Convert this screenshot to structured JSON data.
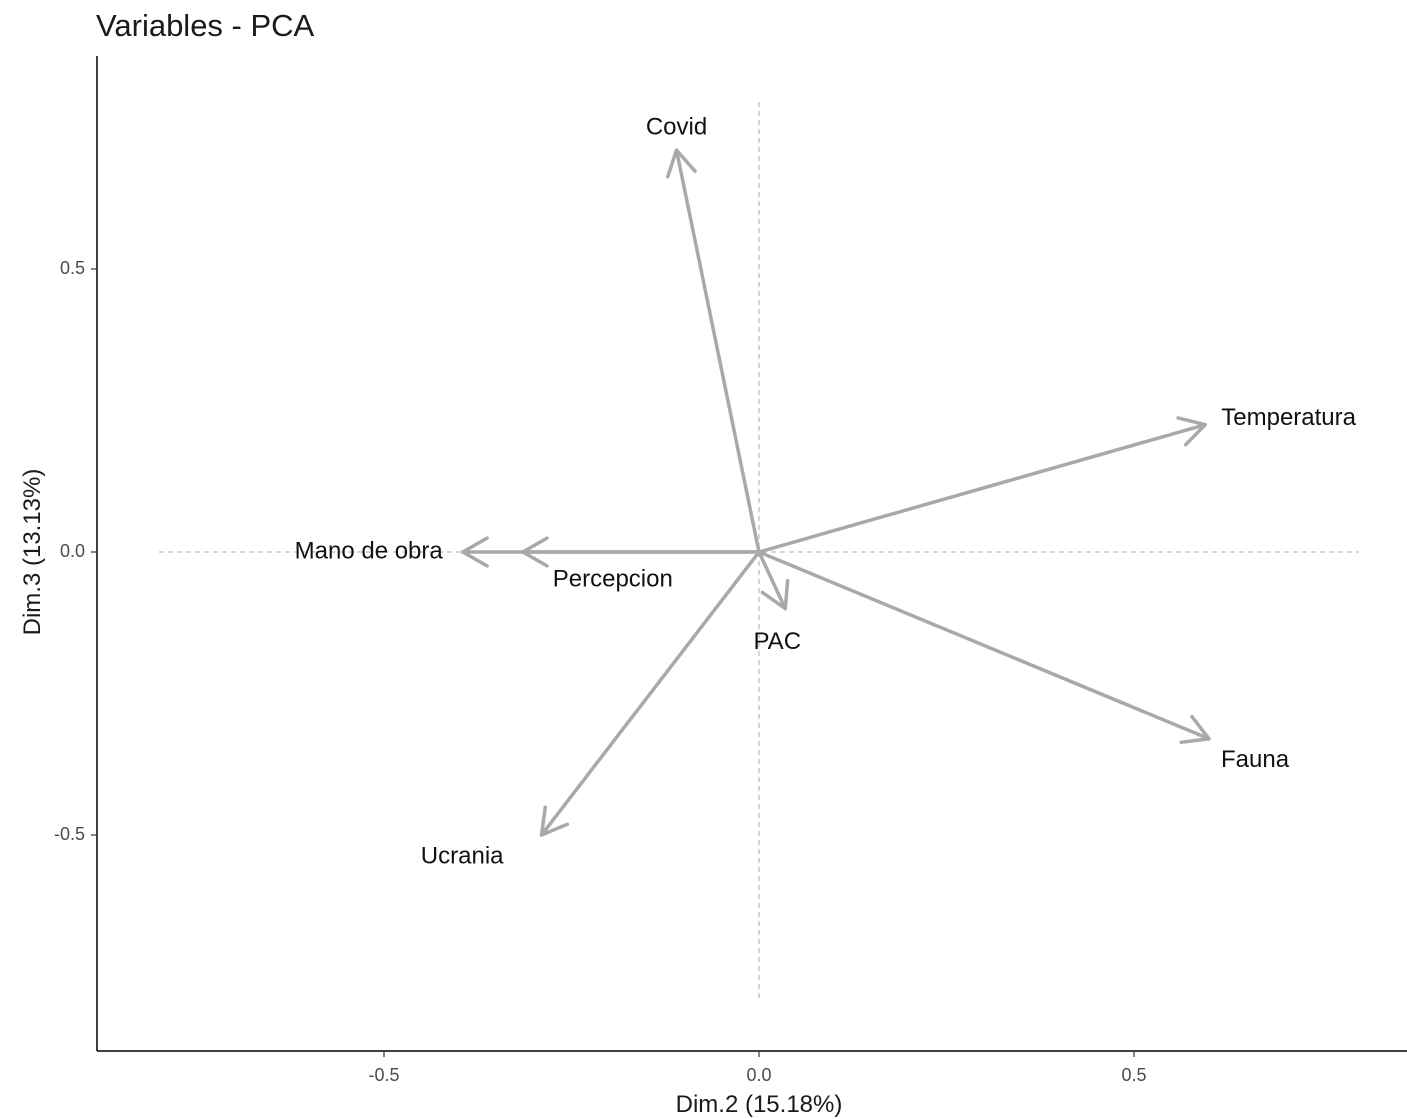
{
  "chart_data": {
    "type": "scatter",
    "title": "Variables - PCA",
    "xlabel": "Dim.2 (15.18%)",
    "ylabel": "Dim.3 (13.13%)",
    "xlim": [
      -0.88,
      0.86
    ],
    "ylim": [
      -0.88,
      0.88
    ],
    "xticks": [
      -0.5,
      0.0,
      0.5
    ],
    "xtick_labels": [
      "-0.5",
      "0.0",
      "0.5"
    ],
    "yticks": [
      0.5,
      0.0,
      -0.5
    ],
    "ytick_labels": [
      "0.5",
      "0.0",
      "-0.5"
    ],
    "grid": false,
    "arrow_color": "#a9a9a9",
    "variables": [
      {
        "name": "Covid",
        "x": -0.11,
        "y": 0.71
      },
      {
        "name": "Temperatura",
        "x": 0.595,
        "y": 0.225
      },
      {
        "name": "Mano de obra",
        "x": -0.395,
        "y": 0.0
      },
      {
        "name": "Percepcion",
        "x": -0.315,
        "y": 0.0
      },
      {
        "name": "PAC",
        "x": 0.035,
        "y": -0.1
      },
      {
        "name": "Fauna",
        "x": 0.6,
        "y": -0.33
      },
      {
        "name": "Ucrania",
        "x": -0.29,
        "y": -0.5
      }
    ]
  }
}
